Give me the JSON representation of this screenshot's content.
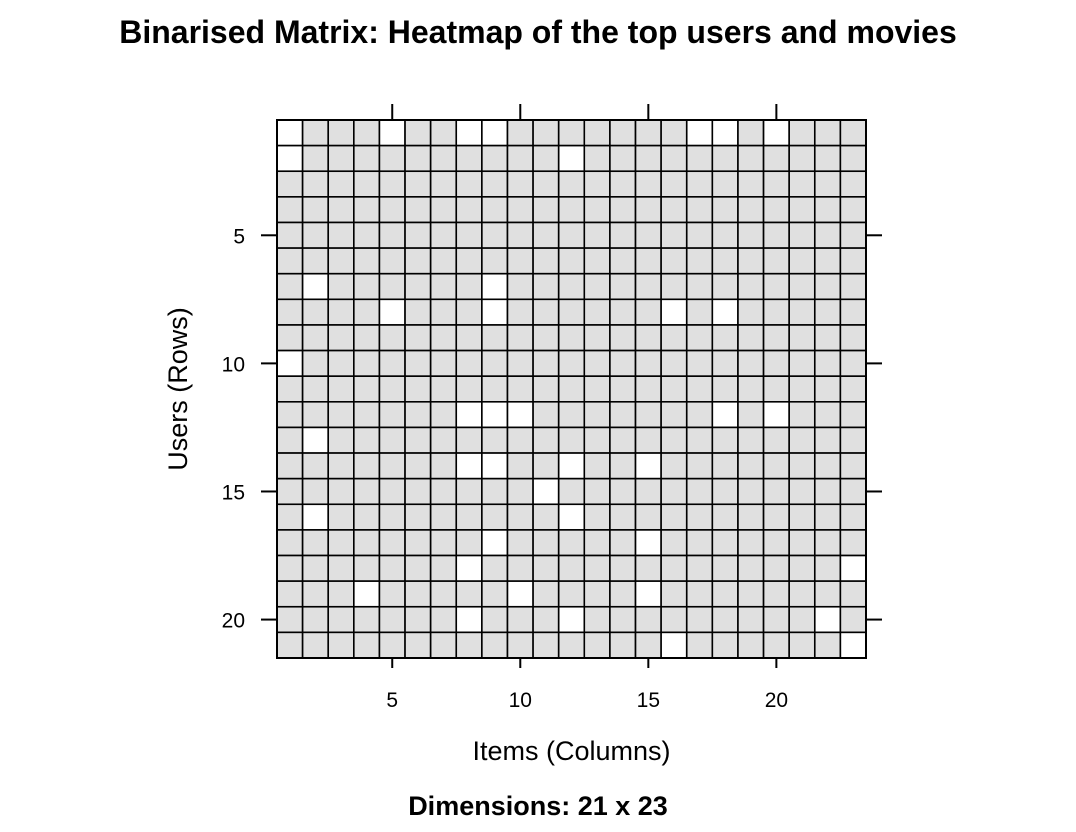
{
  "chart_data": {
    "type": "heatmap",
    "title": "Binarised Matrix: Heatmap of the top users and movies",
    "xlabel": "Items (Columns)",
    "ylabel": "Users (Rows)",
    "subtitle": "Dimensions: 21 x 23",
    "n_rows": 21,
    "n_cols": 23,
    "x_ticks": [
      5,
      10,
      15,
      20
    ],
    "y_ticks": [
      5,
      10,
      15,
      20
    ],
    "value_colors": {
      "0": "#e0e0e0",
      "1": "#ffffff"
    },
    "grid_color": "#000000",
    "matrix": [
      [
        1,
        0,
        0,
        0,
        1,
        0,
        0,
        1,
        1,
        0,
        0,
        0,
        0,
        0,
        0,
        0,
        1,
        1,
        0,
        1,
        0,
        0,
        0
      ],
      [
        1,
        0,
        0,
        0,
        0,
        0,
        0,
        0,
        0,
        0,
        0,
        1,
        0,
        0,
        0,
        0,
        0,
        0,
        0,
        0,
        0,
        0,
        0
      ],
      [
        0,
        0,
        0,
        0,
        0,
        0,
        0,
        0,
        0,
        0,
        0,
        0,
        0,
        0,
        0,
        0,
        0,
        0,
        0,
        0,
        0,
        0,
        0
      ],
      [
        0,
        0,
        0,
        0,
        0,
        0,
        0,
        0,
        0,
        0,
        0,
        0,
        0,
        0,
        0,
        0,
        0,
        0,
        0,
        0,
        0,
        0,
        0
      ],
      [
        0,
        0,
        0,
        0,
        0,
        0,
        0,
        0,
        0,
        0,
        0,
        0,
        0,
        0,
        0,
        0,
        0,
        0,
        0,
        0,
        0,
        0,
        0
      ],
      [
        0,
        0,
        0,
        0,
        0,
        0,
        0,
        0,
        0,
        0,
        0,
        0,
        0,
        0,
        0,
        0,
        0,
        0,
        0,
        0,
        0,
        0,
        0
      ],
      [
        0,
        1,
        0,
        0,
        0,
        0,
        0,
        0,
        1,
        0,
        0,
        0,
        0,
        0,
        0,
        0,
        0,
        0,
        0,
        0,
        0,
        0,
        0
      ],
      [
        0,
        0,
        0,
        0,
        1,
        0,
        0,
        0,
        1,
        0,
        0,
        0,
        0,
        0,
        0,
        1,
        0,
        1,
        0,
        0,
        0,
        0,
        0
      ],
      [
        0,
        0,
        0,
        0,
        0,
        0,
        0,
        0,
        0,
        0,
        0,
        0,
        0,
        0,
        0,
        0,
        0,
        0,
        0,
        0,
        0,
        0,
        0
      ],
      [
        1,
        0,
        0,
        0,
        0,
        0,
        0,
        0,
        0,
        0,
        0,
        0,
        0,
        0,
        0,
        0,
        0,
        0,
        0,
        0,
        0,
        0,
        0
      ],
      [
        0,
        0,
        0,
        0,
        0,
        0,
        0,
        0,
        0,
        0,
        0,
        0,
        0,
        0,
        0,
        0,
        0,
        0,
        0,
        0,
        0,
        0,
        0
      ],
      [
        0,
        0,
        0,
        0,
        0,
        0,
        0,
        1,
        1,
        1,
        0,
        0,
        0,
        0,
        0,
        0,
        0,
        1,
        0,
        1,
        0,
        0,
        0
      ],
      [
        0,
        1,
        0,
        0,
        0,
        0,
        0,
        0,
        0,
        0,
        0,
        0,
        0,
        0,
        0,
        0,
        0,
        0,
        0,
        0,
        0,
        0,
        0
      ],
      [
        0,
        0,
        0,
        0,
        0,
        0,
        0,
        1,
        1,
        0,
        0,
        1,
        0,
        0,
        1,
        0,
        0,
        0,
        0,
        0,
        0,
        0,
        0
      ],
      [
        0,
        0,
        0,
        0,
        0,
        0,
        0,
        0,
        0,
        0,
        1,
        0,
        0,
        0,
        0,
        0,
        0,
        0,
        0,
        0,
        0,
        0,
        0
      ],
      [
        0,
        1,
        0,
        0,
        0,
        0,
        0,
        0,
        0,
        0,
        0,
        1,
        0,
        0,
        0,
        0,
        0,
        0,
        0,
        0,
        0,
        0,
        0
      ],
      [
        0,
        0,
        0,
        0,
        0,
        0,
        0,
        0,
        1,
        0,
        0,
        0,
        0,
        0,
        1,
        0,
        0,
        0,
        0,
        0,
        0,
        0,
        0
      ],
      [
        0,
        0,
        0,
        0,
        0,
        0,
        0,
        1,
        0,
        0,
        0,
        0,
        0,
        0,
        0,
        0,
        0,
        0,
        0,
        0,
        0,
        0,
        1
      ],
      [
        0,
        0,
        0,
        1,
        0,
        0,
        0,
        0,
        0,
        1,
        0,
        0,
        0,
        0,
        1,
        0,
        0,
        0,
        0,
        0,
        0,
        0,
        0
      ],
      [
        0,
        0,
        0,
        0,
        0,
        0,
        0,
        1,
        0,
        0,
        0,
        1,
        0,
        0,
        0,
        0,
        0,
        0,
        0,
        0,
        0,
        1,
        0
      ],
      [
        0,
        0,
        0,
        0,
        0,
        0,
        0,
        0,
        0,
        0,
        0,
        0,
        0,
        0,
        0,
        1,
        0,
        0,
        0,
        0,
        0,
        0,
        1
      ]
    ]
  }
}
